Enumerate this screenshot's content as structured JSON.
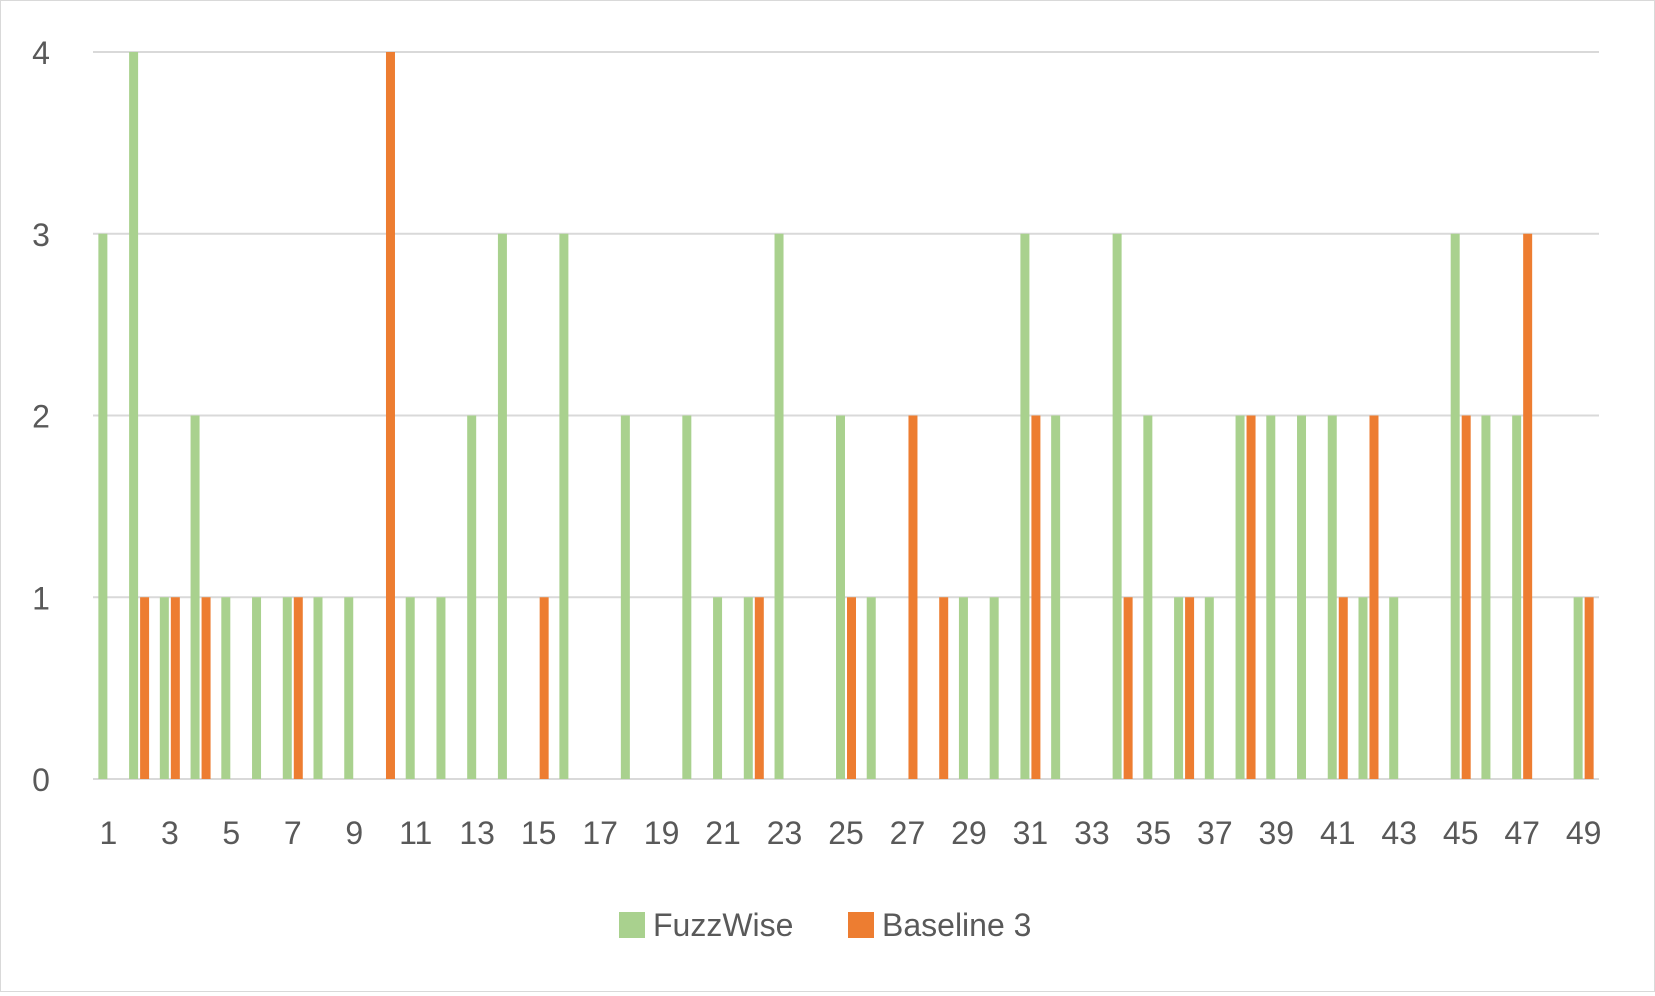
{
  "chart_data": {
    "type": "bar",
    "title": "",
    "xlabel": "",
    "ylabel": "",
    "ylim": [
      0,
      4
    ],
    "yticks": [
      "0",
      "1",
      "2",
      "3",
      "4"
    ],
    "grid": true,
    "legend_position": "bottom",
    "categories": [
      "1",
      "2",
      "3",
      "4",
      "5",
      "6",
      "7",
      "8",
      "9",
      "10",
      "11",
      "12",
      "13",
      "14",
      "15",
      "16",
      "17",
      "18",
      "19",
      "20",
      "21",
      "22",
      "23",
      "24",
      "25",
      "26",
      "27",
      "28",
      "29",
      "30",
      "31",
      "32",
      "33",
      "34",
      "35",
      "36",
      "37",
      "38",
      "39",
      "40",
      "41",
      "42",
      "43",
      "44",
      "45",
      "46",
      "47",
      "48",
      "49"
    ],
    "xtick_labels": [
      "1",
      "3",
      "5",
      "7",
      "9",
      "11",
      "13",
      "15",
      "17",
      "19",
      "21",
      "23",
      "25",
      "27",
      "29",
      "31",
      "33",
      "35",
      "37",
      "39",
      "41",
      "43",
      "45",
      "47",
      "49"
    ],
    "series": [
      {
        "name": "FuzzWise",
        "color": "#a9d18e",
        "values": [
          3,
          4,
          1,
          2,
          1,
          1,
          1,
          1,
          1,
          0,
          1,
          1,
          2,
          3,
          0,
          3,
          0,
          2,
          0,
          2,
          1,
          1,
          3,
          0,
          2,
          1,
          0,
          0,
          1,
          1,
          3,
          2,
          0,
          3,
          2,
          1,
          1,
          2,
          2,
          2,
          2,
          1,
          1,
          0,
          3,
          2,
          2,
          0,
          1
        ]
      },
      {
        "name": "Baseline 3",
        "color": "#ed7d31",
        "values": [
          0,
          1,
          1,
          1,
          0,
          0,
          1,
          0,
          0,
          4,
          0,
          0,
          0,
          0,
          1,
          0,
          0,
          0,
          0,
          0,
          0,
          1,
          0,
          0,
          1,
          0,
          2,
          1,
          0,
          0,
          2,
          0,
          0,
          1,
          0,
          1,
          0,
          2,
          0,
          0,
          1,
          2,
          0,
          0,
          2,
          0,
          3,
          0,
          1
        ]
      }
    ]
  }
}
